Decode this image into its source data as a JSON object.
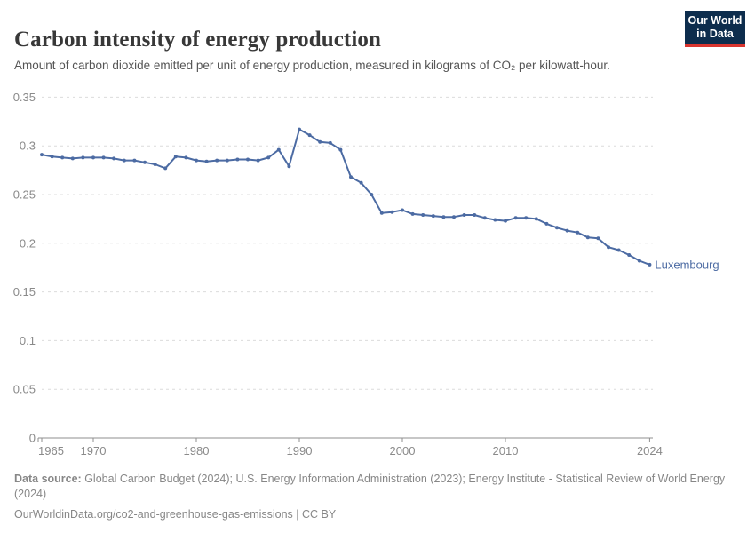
{
  "header": {
    "title": "Carbon intensity of energy production",
    "subtitle": "Amount of carbon dioxide emitted per unit of energy production, measured in kilograms of CO₂ per kilowatt-hour.",
    "logo": {
      "line1": "Our World",
      "line2": "in Data",
      "bg_color": "#0d2d4d",
      "accent_color": "#d9352f"
    }
  },
  "chart_data": {
    "type": "line",
    "title": "Carbon intensity of energy production",
    "entity_label": "Luxembourg",
    "x": [
      1965,
      1966,
      1967,
      1968,
      1969,
      1970,
      1971,
      1972,
      1973,
      1974,
      1975,
      1976,
      1977,
      1978,
      1979,
      1980,
      1981,
      1982,
      1983,
      1984,
      1985,
      1986,
      1987,
      1988,
      1989,
      1990,
      1991,
      1992,
      1993,
      1994,
      1995,
      1996,
      1997,
      1998,
      1999,
      2000,
      2001,
      2002,
      2003,
      2004,
      2005,
      2006,
      2007,
      2008,
      2009,
      2010,
      2011,
      2012,
      2013,
      2014,
      2015,
      2016,
      2017,
      2018,
      2019,
      2020,
      2021,
      2022,
      2023,
      2024
    ],
    "values": [
      0.291,
      0.289,
      0.288,
      0.287,
      0.288,
      0.288,
      0.288,
      0.287,
      0.285,
      0.285,
      0.283,
      0.281,
      0.277,
      0.289,
      0.288,
      0.285,
      0.284,
      0.285,
      0.285,
      0.286,
      0.286,
      0.285,
      0.288,
      0.296,
      0.279,
      0.317,
      0.311,
      0.304,
      0.303,
      0.296,
      0.268,
      0.262,
      0.25,
      0.231,
      0.232,
      0.234,
      0.23,
      0.229,
      0.228,
      0.227,
      0.227,
      0.229,
      0.229,
      0.226,
      0.224,
      0.223,
      0.226,
      0.226,
      0.225,
      0.22,
      0.216,
      0.213,
      0.211,
      0.206,
      0.205,
      0.196,
      0.193,
      0.188,
      0.182,
      0.178
    ],
    "xlabel": "",
    "ylabel": "",
    "ylim": [
      0,
      0.35
    ],
    "xlim": [
      1965,
      2024
    ],
    "yticks": [
      0,
      0.05,
      0.1,
      0.15,
      0.2,
      0.25,
      0.3,
      0.35
    ],
    "xticks": [
      1965,
      1970,
      1980,
      1990,
      2000,
      2010,
      2024
    ],
    "grid": "horizontal-dashed",
    "legend_position": "end-of-line",
    "line_color": "#4c6ba3",
    "grid_color": "#dcdcdc",
    "axis_color": "#8f8f8f",
    "tick_label_color": "#8a8a8a"
  },
  "footer": {
    "source_bold": "Data source:",
    "source_rest": " Global Carbon Budget (2024); U.S. Energy Information Administration (2023); Energy Institute - Statistical Review of World Energy (2024)",
    "link_line": "OurWorldinData.org/co2-and-greenhouse-gas-emissions | CC BY"
  }
}
